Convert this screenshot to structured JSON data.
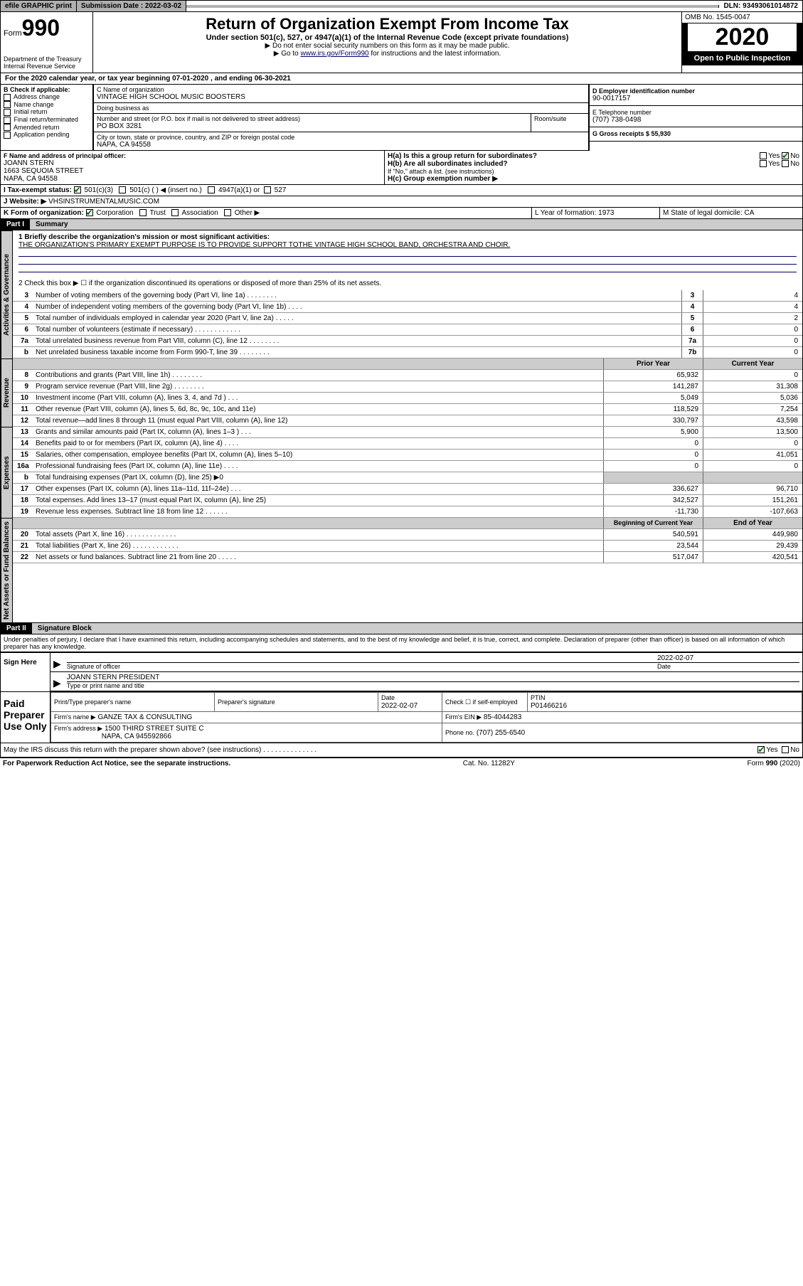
{
  "topbar": {
    "efile": "efile GRAPHIC print",
    "submission_label": "Submission Date : 2022-03-02",
    "dln": "DLN: 93493061014872"
  },
  "header": {
    "form_prefix": "Form",
    "form_number": "990",
    "dept": "Department of the Treasury",
    "irs": "Internal Revenue Service",
    "title": "Return of Organization Exempt From Income Tax",
    "subtitle": "Under section 501(c), 527, or 4947(a)(1) of the Internal Revenue Code (except private foundations)",
    "hint1": "▶ Do not enter social security numbers on this form as it may be made public.",
    "hint2_pre": "▶ Go to ",
    "hint2_link": "www.irs.gov/Form990",
    "hint2_post": " for instructions and the latest information.",
    "omb": "OMB No. 1545-0047",
    "year": "2020",
    "inspect": "Open to Public Inspection"
  },
  "periodA": "For the 2020 calendar year, or tax year beginning 07-01-2020    , and ending 06-30-2021",
  "sectionB": {
    "label": "B Check if applicable:",
    "items": [
      "Address change",
      "Name change",
      "Initial return",
      "Final return/terminated",
      "Amended return",
      "Application pending"
    ]
  },
  "sectionC": {
    "name_label": "C Name of organization",
    "name": "VINTAGE HIGH SCHOOL MUSIC BOOSTERS",
    "dba_label": "Doing business as",
    "dba": "",
    "street_label": "Number and street (or P.O. box if mail is not delivered to street address)",
    "street": "PO BOX 3281",
    "room_label": "Room/suite",
    "city_label": "City or town, state or province, country, and ZIP or foreign postal code",
    "city": "NAPA, CA  94558"
  },
  "sectionD": {
    "label": "D Employer identification number",
    "value": "90-0017157"
  },
  "sectionE": {
    "label": "E Telephone number",
    "value": "(707) 738-0498"
  },
  "sectionG": {
    "label": "G Gross receipts $ 55,930"
  },
  "sectionF": {
    "label": "F Name and address of principal officer:",
    "name": "JOANN STERN",
    "street": "1663 SEQUOIA STREET",
    "city": "NAPA, CA  94558"
  },
  "sectionH": {
    "a": "H(a)  Is this a group return for subordinates?",
    "b": "H(b)  Are all subordinates included?",
    "note": "If \"No,\" attach a list. (see instructions)",
    "c": "H(c)  Group exemption number ▶"
  },
  "sectionI": {
    "label": "I    Tax-exempt status:",
    "o1": "501(c)(3)",
    "o2": "501(c) (   ) ◀ (insert no.)",
    "o3": "4947(a)(1) or",
    "o4": "527"
  },
  "sectionJ": {
    "label": "J    Website: ▶",
    "value": "VHSINSTRUMENTALMUSIC.COM"
  },
  "sectionK": {
    "label": "K Form of organization:",
    "opts": [
      "Corporation",
      "Trust",
      "Association",
      "Other ▶"
    ]
  },
  "sectionL": {
    "label": "L Year of formation: 1973"
  },
  "sectionM": {
    "label": "M State of legal domicile: CA"
  },
  "part1": {
    "num": "Part I",
    "title": "Summary"
  },
  "summary": {
    "l1_label": "1  Briefly describe the organization's mission or most significant activities:",
    "l1_text": "THE ORGANIZATION'S PRIMARY EXEMPT PURPOSE IS TO PROVIDE SUPPORT TOTHE VINTAGE HIGH SCHOOL BAND, ORCHESTRA AND CHOIR.",
    "l2": "2   Check this box ▶ ☐  if the organization discontinued its operations or disposed of more than 25% of its net assets.",
    "rows_single": [
      {
        "n": "3",
        "d": "Number of voting members of the governing body (Part VI, line 1a)   .    .    .    .    .    .    .    .",
        "b": "3",
        "v": "4"
      },
      {
        "n": "4",
        "d": "Number of independent voting members of the governing body (Part VI, line 1b)    .    .    .    .",
        "b": "4",
        "v": "4"
      },
      {
        "n": "5",
        "d": "Total number of individuals employed in calendar year 2020 (Part V, line 2a)    .    .    .    .    .",
        "b": "5",
        "v": "2"
      },
      {
        "n": "6",
        "d": "Total number of volunteers (estimate if necessary)   .    .    .    .    .    .    .    .    .    .    .    .",
        "b": "6",
        "v": "0"
      },
      {
        "n": "7a",
        "d": "Total unrelated business revenue from Part VIII, column (C), line 12   .    .    .    .    .    .    .    .",
        "b": "7a",
        "v": "0"
      },
      {
        "n": "b",
        "d": "Net unrelated business taxable income from Form 990-T, line 39   .    .    .    .    .    .    .    .",
        "b": "7b",
        "v": "0"
      }
    ],
    "py_hdr": "Prior Year",
    "cy_hdr": "Current Year",
    "rev_rows": [
      {
        "n": "8",
        "d": "Contributions and grants (Part VIII, line 1h)    .    .    .    .    .    .    .    .",
        "py": "65,932",
        "cy": "0"
      },
      {
        "n": "9",
        "d": "Program service revenue (Part VIII, line 2g)    .    .    .    .    .    .    .    .",
        "py": "141,287",
        "cy": "31,308"
      },
      {
        "n": "10",
        "d": "Investment income (Part VIII, column (A), lines 3, 4, and 7d )    .    .    .",
        "py": "5,049",
        "cy": "5,036"
      },
      {
        "n": "11",
        "d": "Other revenue (Part VIII, column (A), lines 5, 6d, 8c, 9c, 10c, and 11e)",
        "py": "118,529",
        "cy": "7,254"
      },
      {
        "n": "12",
        "d": "Total revenue—add lines 8 through 11 (must equal Part VIII, column (A), line 12)",
        "py": "330,797",
        "cy": "43,598"
      }
    ],
    "exp_rows": [
      {
        "n": "13",
        "d": "Grants and similar amounts paid (Part IX, column (A), lines 1–3 )    .    .    .",
        "py": "5,900",
        "cy": "13,500"
      },
      {
        "n": "14",
        "d": "Benefits paid to or for members (Part IX, column (A), line 4)    .    .    .    .",
        "py": "0",
        "cy": "0"
      },
      {
        "n": "15",
        "d": "Salaries, other compensation, employee benefits (Part IX, column (A), lines 5–10)",
        "py": "0",
        "cy": "41,051"
      },
      {
        "n": "16a",
        "d": "Professional fundraising fees (Part IX, column (A), line 11e)    .    .    .    .",
        "py": "0",
        "cy": "0"
      },
      {
        "n": "b",
        "d": "Total fundraising expenses (Part IX, column (D), line 25) ▶0",
        "py": "",
        "cy": "",
        "shade": true
      },
      {
        "n": "17",
        "d": "Other expenses (Part IX, column (A), lines 11a–11d, 11f–24e)    .    .    .",
        "py": "336,627",
        "cy": "96,710"
      },
      {
        "n": "18",
        "d": "Total expenses. Add lines 13–17 (must equal Part IX, column (A), line 25)",
        "py": "342,527",
        "cy": "151,261"
      },
      {
        "n": "19",
        "d": "Revenue less expenses. Subtract line 18 from line 12    .    .    .    .    .    .",
        "py": "-11,730",
        "cy": "-107,663"
      }
    ],
    "na_hdr_py": "Beginning of Current Year",
    "na_hdr_cy": "End of Year",
    "na_rows": [
      {
        "n": "20",
        "d": "Total assets (Part X, line 16)   .    .    .    .    .    .    .    .    .    .    .    .    .",
        "py": "540,591",
        "cy": "449,980"
      },
      {
        "n": "21",
        "d": "Total liabilities (Part X, line 26)   .    .    .    .    .    .    .    .    .    .    .    .",
        "py": "23,544",
        "cy": "29,439"
      },
      {
        "n": "22",
        "d": "Net assets or fund balances. Subtract line 21 from line 20   .    .    .    .    .",
        "py": "517,047",
        "cy": "420,541"
      }
    ],
    "side_gov": "Activities & Governance",
    "side_rev": "Revenue",
    "side_exp": "Expenses",
    "side_na": "Net Assets or Fund Balances"
  },
  "part2": {
    "num": "Part II",
    "title": "Signature Block"
  },
  "penalties": "Under penalties of perjury, I declare that I have examined this return, including accompanying schedules and statements, and to the best of my knowledge and belief, it is true, correct, and complete. Declaration of preparer (other than officer) is based on all information of which preparer has any knowledge.",
  "sign": {
    "here": "Sign Here",
    "sig_officer": "Signature of officer",
    "date_label": "Date",
    "date": "2022-02-07",
    "name": "JOANN STERN  PRESIDENT",
    "name_label": "Type or print name and title"
  },
  "paid": {
    "label": "Paid Preparer Use Only",
    "print_label": "Print/Type preparer's name",
    "sig_label": "Preparer's signature",
    "date_label": "Date",
    "date": "2022-02-07",
    "check_label": "Check ☐ if self-employed",
    "ptin_label": "PTIN",
    "ptin": "P01466216",
    "firm_name_label": "Firm's name    ▶",
    "firm_name": "GANZE TAX & CONSULTING",
    "firm_ein_label": "Firm's EIN ▶",
    "firm_ein": "85-4044283",
    "firm_addr_label": "Firm's address ▶",
    "firm_addr1": "1500 THIRD STREET SUITE C",
    "firm_addr2": "NAPA, CA  945592866",
    "phone_label": "Phone no.",
    "phone": "(707) 255-6540"
  },
  "discuss": "May the IRS discuss this return with the preparer shown above? (see instructions)    .    .    .    .    .    .    .    .    .    .    .    .    .    .",
  "footer": {
    "left": "For Paperwork Reduction Act Notice, see the separate instructions.",
    "mid": "Cat. No. 11282Y",
    "right": "Form 990 (2020)"
  }
}
